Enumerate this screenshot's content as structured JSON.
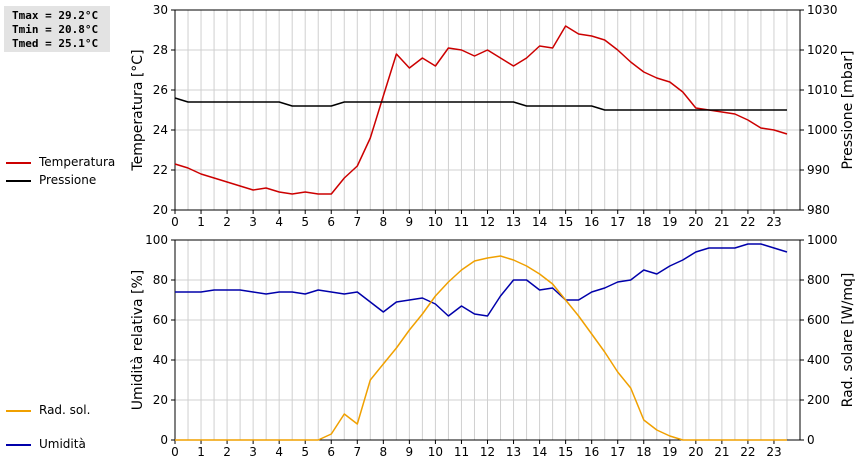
{
  "stats": {
    "tmax": "Tmax = 29.2°C",
    "tmin": "Tmin = 20.8°C",
    "tmed": "Tmed = 25.1°C"
  },
  "legend_top": [
    {
      "label": "Temperatura",
      "color": "#cc0000"
    },
    {
      "label": "Pressione",
      "color": "#000000"
    }
  ],
  "legend_bottom": [
    {
      "label": "Umidità",
      "color": "#0000aa"
    },
    {
      "label": "Rad. sol.",
      "color": "#f0a000"
    }
  ],
  "chart_data": [
    {
      "type": "line",
      "x_ticks": [
        "0",
        "1",
        "2",
        "3",
        "4",
        "5",
        "6",
        "7",
        "8",
        "9",
        "10",
        "11",
        "12",
        "13",
        "14",
        "15",
        "16",
        "17",
        "18",
        "19",
        "20",
        "21",
        "22",
        "23"
      ],
      "xlim": [
        0,
        24
      ],
      "ylabel": "Temperatura [°C]",
      "ylabel_right": "Pressione [mbar]",
      "ylim": [
        20,
        30
      ],
      "yticks": [
        20,
        22,
        24,
        26,
        28,
        30
      ],
      "ylim_right": [
        980,
        1030
      ],
      "yticks_right": [
        980,
        990,
        1000,
        1010,
        1020,
        1030
      ],
      "grid": true,
      "series": [
        {
          "name": "Temperatura",
          "axis": "left",
          "color": "#cc0000",
          "x": [
            0,
            0.5,
            1,
            1.5,
            2,
            2.5,
            3,
            3.5,
            4,
            4.5,
            5,
            5.5,
            6,
            6.5,
            7,
            7.5,
            8,
            8.5,
            9,
            9.5,
            10,
            10.5,
            11,
            11.5,
            12,
            12.5,
            13,
            13.5,
            14,
            14.5,
            15,
            15.5,
            16,
            16.5,
            17,
            17.5,
            18,
            18.5,
            19,
            19.5,
            20,
            20.5,
            21,
            21.5,
            22,
            22.5,
            23,
            23.5
          ],
          "y": [
            22.3,
            22.1,
            21.8,
            21.6,
            21.4,
            21.2,
            21.0,
            21.1,
            20.9,
            20.8,
            20.9,
            20.8,
            20.8,
            21.6,
            22.2,
            23.6,
            25.7,
            27.8,
            27.1,
            27.6,
            27.2,
            28.1,
            28.0,
            27.7,
            28.0,
            27.6,
            27.2,
            27.6,
            28.2,
            28.1,
            29.2,
            28.8,
            28.7,
            28.5,
            28.0,
            27.4,
            26.9,
            26.6,
            26.4,
            25.9,
            25.1,
            25.0,
            24.9,
            24.8,
            24.5,
            24.1,
            24.0,
            23.8
          ]
        },
        {
          "name": "Pressione",
          "axis": "right",
          "color": "#000000",
          "x": [
            0,
            0.5,
            1,
            4,
            4.5,
            6,
            6.5,
            13,
            13.5,
            16,
            16.5,
            23.5
          ],
          "y": [
            1008,
            1007,
            1007,
            1007,
            1006,
            1006,
            1007,
            1007,
            1006,
            1006,
            1005,
            1005
          ]
        }
      ]
    },
    {
      "type": "line",
      "x_ticks": [
        "0",
        "1",
        "2",
        "3",
        "4",
        "5",
        "6",
        "7",
        "8",
        "9",
        "10",
        "11",
        "12",
        "13",
        "14",
        "15",
        "16",
        "17",
        "18",
        "19",
        "20",
        "21",
        "22",
        "23"
      ],
      "xlim": [
        0,
        24
      ],
      "ylabel": "Umidità relativa [%]",
      "ylabel_right": "Rad. solare [W/mq]",
      "ylim": [
        0,
        100
      ],
      "yticks": [
        0,
        20,
        40,
        60,
        80,
        100
      ],
      "ylim_right": [
        0,
        1000
      ],
      "yticks_right": [
        0,
        200,
        400,
        600,
        800,
        1000
      ],
      "grid": true,
      "series": [
        {
          "name": "Umidità",
          "axis": "left",
          "color": "#0000aa",
          "x": [
            0,
            0.5,
            1,
            1.5,
            2,
            2.5,
            3,
            3.5,
            4,
            4.5,
            5,
            5.5,
            6,
            6.5,
            7,
            7.5,
            8,
            8.5,
            9,
            9.5,
            10,
            10.5,
            11,
            11.5,
            12,
            12.5,
            13,
            13.5,
            14,
            14.5,
            15,
            15.5,
            16,
            16.5,
            17,
            17.5,
            18,
            18.5,
            19,
            19.5,
            20,
            20.5,
            21,
            21.5,
            22,
            22.5,
            23,
            23.5
          ],
          "y": [
            74,
            74,
            74,
            75,
            75,
            75,
            74,
            73,
            74,
            74,
            73,
            75,
            74,
            73,
            74,
            69,
            64,
            69,
            70,
            71,
            68,
            62,
            67,
            63,
            62,
            72,
            80,
            80,
            75,
            76,
            70,
            70,
            74,
            76,
            79,
            80,
            85,
            83,
            87,
            90,
            94,
            96,
            96,
            96,
            98,
            98,
            96,
            94
          ]
        },
        {
          "name": "Rad. sol.",
          "axis": "right",
          "color": "#f0a000",
          "x": [
            0,
            0.5,
            1,
            1.5,
            2,
            2.5,
            3,
            3.5,
            4,
            4.5,
            5,
            5.5,
            6,
            6.5,
            7,
            7.5,
            8,
            8.5,
            9,
            9.5,
            10,
            10.5,
            11,
            11.5,
            12,
            12.5,
            13,
            13.5,
            14,
            14.5,
            15,
            15.5,
            16,
            16.5,
            17,
            17.5,
            18,
            18.5,
            19,
            19.5,
            20,
            20.5,
            21,
            21.5,
            22,
            22.5,
            23,
            23.5
          ],
          "y": [
            0,
            0,
            0,
            0,
            0,
            0,
            0,
            0,
            0,
            0,
            0,
            0,
            30,
            130,
            80,
            300,
            380,
            460,
            550,
            630,
            720,
            790,
            850,
            895,
            910,
            920,
            900,
            870,
            830,
            780,
            700,
            620,
            530,
            440,
            340,
            260,
            100,
            50,
            20,
            0,
            0,
            0,
            0,
            0,
            0,
            0,
            0,
            0
          ]
        }
      ]
    }
  ]
}
